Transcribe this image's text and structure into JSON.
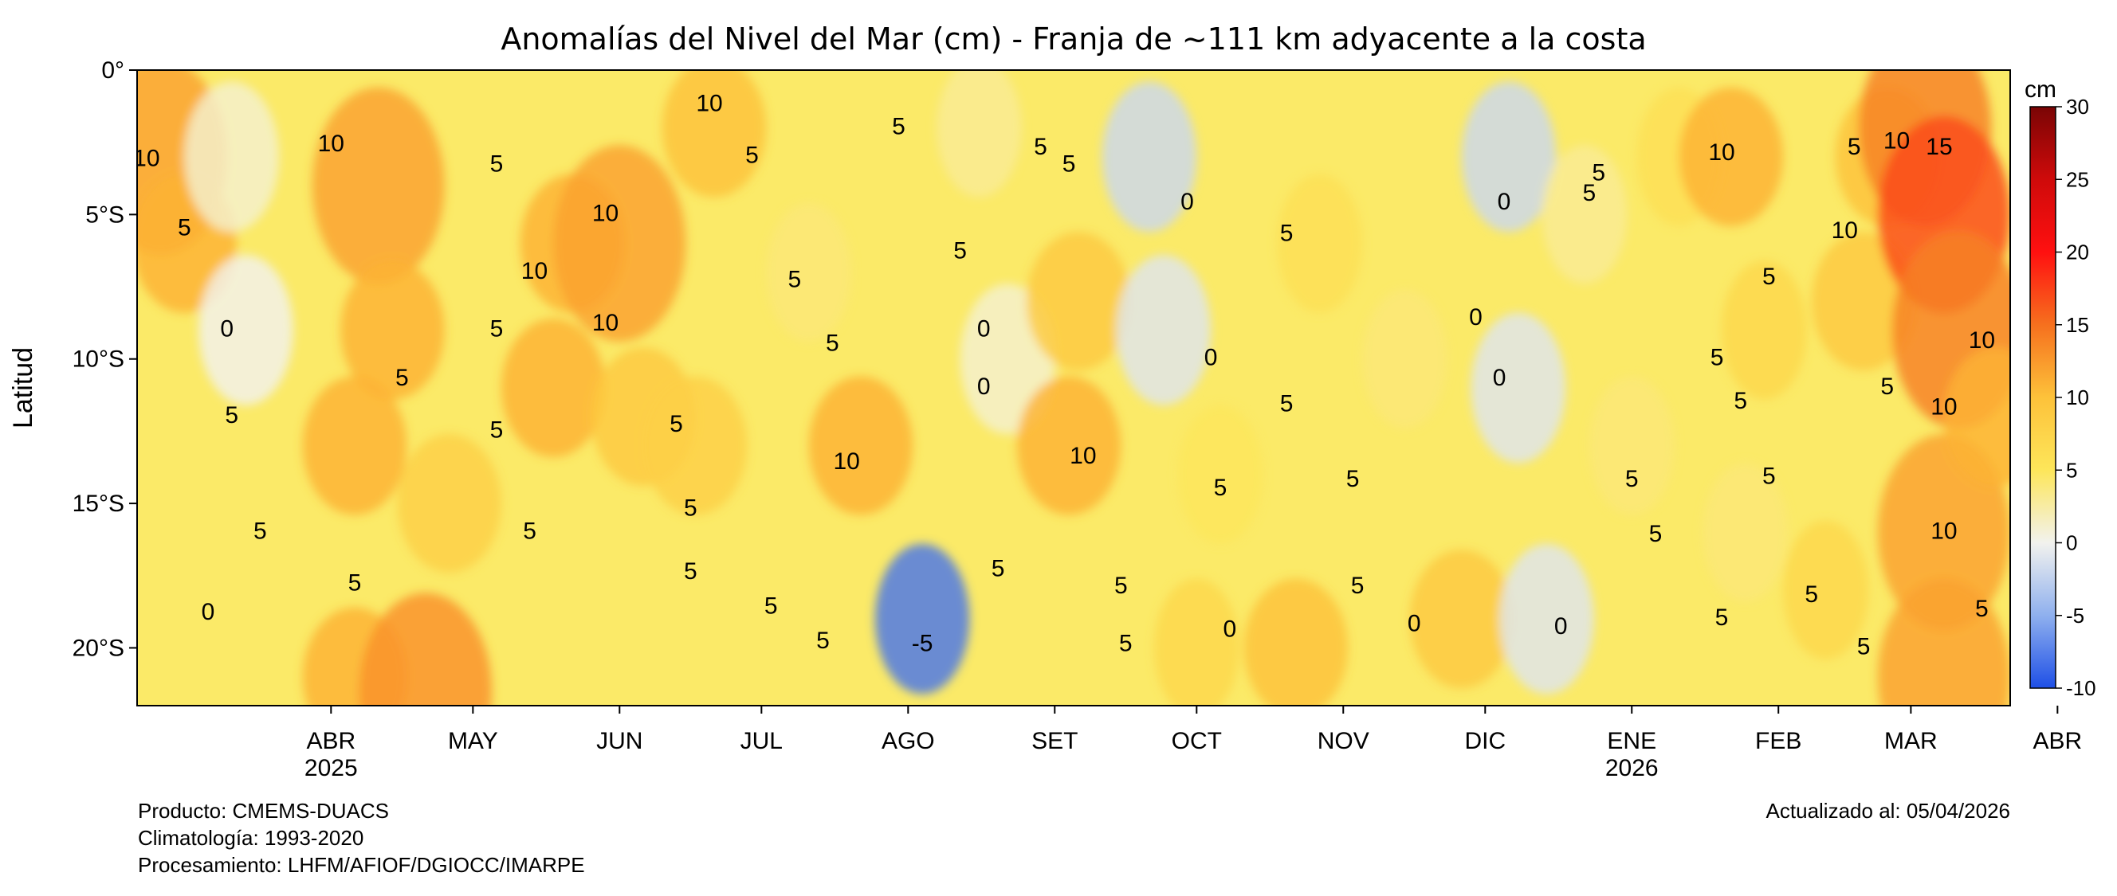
{
  "chart_data": {
    "type": "heatmap",
    "title": "Anomalías del Nivel del Mar (cm) - Franja de ~111 km adyacente a la costa",
    "ylabel": "Latitud",
    "colorbar_label": "cm",
    "colorbar_ticks": [
      30,
      25,
      20,
      15,
      10,
      5,
      0,
      -5,
      -10
    ],
    "colorbar_range": [
      -10,
      30
    ],
    "y_ticks": [
      "0°",
      "5°S",
      "10°S",
      "15°S",
      "20°S"
    ],
    "y_range": [
      0,
      -22
    ],
    "x_ticks": [
      {
        "month": "ABR",
        "year": "2025"
      },
      {
        "month": "MAY",
        "year": ""
      },
      {
        "month": "JUN",
        "year": ""
      },
      {
        "month": "JUL",
        "year": ""
      },
      {
        "month": "AGO",
        "year": ""
      },
      {
        "month": "SET",
        "year": ""
      },
      {
        "month": "OCT",
        "year": ""
      },
      {
        "month": "NOV",
        "year": ""
      },
      {
        "month": "DIC",
        "year": ""
      },
      {
        "month": "ENE",
        "year": "2026"
      },
      {
        "month": "FEB",
        "year": ""
      },
      {
        "month": "MAR",
        "year": ""
      },
      {
        "month": "ABR",
        "year": ""
      }
    ],
    "x_range": [
      "2025-03-05",
      "2026-04-05"
    ],
    "contour_levels": [
      -5,
      0,
      5,
      10,
      15
    ],
    "anomaly_centers": [
      {
        "date": "2025-03-10",
        "lat": -3,
        "value": 12
      },
      {
        "date": "2025-03-15",
        "lat": -6,
        "value": 11
      },
      {
        "date": "2025-03-25",
        "lat": -3,
        "value": 1
      },
      {
        "date": "2025-03-28",
        "lat": -9,
        "value": 0
      },
      {
        "date": "2025-04-25",
        "lat": -4,
        "value": 12
      },
      {
        "date": "2025-04-28",
        "lat": -9,
        "value": 11
      },
      {
        "date": "2025-04-20",
        "lat": -13,
        "value": 11
      },
      {
        "date": "2025-04-20",
        "lat": -21,
        "value": 11
      },
      {
        "date": "2025-05-05",
        "lat": -21.5,
        "value": 13
      },
      {
        "date": "2025-05-10",
        "lat": -15,
        "value": 8
      },
      {
        "date": "2025-06-01",
        "lat": -11,
        "value": 11
      },
      {
        "date": "2025-06-05",
        "lat": -6,
        "value": 11
      },
      {
        "date": "2025-06-15",
        "lat": -6,
        "value": 12
      },
      {
        "date": "2025-06-20",
        "lat": -12,
        "value": 9
      },
      {
        "date": "2025-07-05",
        "lat": -2,
        "value": 10
      },
      {
        "date": "2025-07-01",
        "lat": -13,
        "value": 8
      },
      {
        "date": "2025-07-25",
        "lat": -7,
        "value": 4
      },
      {
        "date": "2025-08-05",
        "lat": -13,
        "value": 11
      },
      {
        "date": "2025-08-18",
        "lat": -19,
        "value": -8
      },
      {
        "date": "2025-08-30",
        "lat": -2,
        "value": 3
      },
      {
        "date": "2025-09-05",
        "lat": -10,
        "value": 1
      },
      {
        "date": "2025-09-18",
        "lat": -13,
        "value": 11
      },
      {
        "date": "2025-09-20",
        "lat": -8,
        "value": 9
      },
      {
        "date": "2025-10-05",
        "lat": -3,
        "value": -2
      },
      {
        "date": "2025-10-08",
        "lat": -9,
        "value": -1
      },
      {
        "date": "2025-10-20",
        "lat": -14,
        "value": 5
      },
      {
        "date": "2025-10-15",
        "lat": -20,
        "value": 7
      },
      {
        "date": "2025-11-05",
        "lat": -20,
        "value": 10
      },
      {
        "date": "2025-11-10",
        "lat": -6,
        "value": 6
      },
      {
        "date": "2025-11-28",
        "lat": -10,
        "value": 4
      },
      {
        "date": "2025-12-10",
        "lat": -19,
        "value": 9
      },
      {
        "date": "2025-12-20",
        "lat": -3,
        "value": -2
      },
      {
        "date": "2025-12-22",
        "lat": -11,
        "value": -1
      },
      {
        "date": "2025-12-28",
        "lat": -19,
        "value": -1
      },
      {
        "date": "2026-01-05",
        "lat": -5,
        "value": 3
      },
      {
        "date": "2026-01-15",
        "lat": -13,
        "value": 4
      },
      {
        "date": "2026-01-25",
        "lat": -3,
        "value": 6
      },
      {
        "date": "2026-02-05",
        "lat": -3,
        "value": 11
      },
      {
        "date": "2026-02-08",
        "lat": -16,
        "value": 4
      },
      {
        "date": "2026-02-12",
        "lat": -9,
        "value": 7
      },
      {
        "date": "2026-02-25",
        "lat": -18,
        "value": 7
      },
      {
        "date": "2026-03-05",
        "lat": -8,
        "value": 9
      },
      {
        "date": "2026-03-10",
        "lat": -3,
        "value": 10
      },
      {
        "date": "2026-03-18",
        "lat": -2,
        "value": 14
      },
      {
        "date": "2026-03-22",
        "lat": -5,
        "value": 17
      },
      {
        "date": "2026-03-25",
        "lat": -9,
        "value": 14
      },
      {
        "date": "2026-03-22",
        "lat": -16,
        "value": 12
      },
      {
        "date": "2026-03-22",
        "lat": -21,
        "value": 12
      },
      {
        "date": "2026-04-02",
        "lat": -12,
        "value": 11
      }
    ],
    "contour_labels": [
      {
        "text": "10",
        "date": "2025-03-07",
        "lat": -3.1
      },
      {
        "text": "5",
        "date": "2025-03-15",
        "lat": -5.5
      },
      {
        "text": "0",
        "date": "2025-03-24",
        "lat": -9.0
      },
      {
        "text": "5",
        "date": "2025-03-25",
        "lat": -12.0
      },
      {
        "text": "0",
        "date": "2025-03-20",
        "lat": -18.8
      },
      {
        "text": "5",
        "date": "2025-03-31",
        "lat": -16.0
      },
      {
        "text": "10",
        "date": "2025-04-15",
        "lat": -2.6
      },
      {
        "text": "5",
        "date": "2025-04-20",
        "lat": -17.8
      },
      {
        "text": "5",
        "date": "2025-04-30",
        "lat": -10.7
      },
      {
        "text": "5",
        "date": "2025-05-20",
        "lat": -3.3
      },
      {
        "text": "5",
        "date": "2025-05-20",
        "lat": -9.0
      },
      {
        "text": "5",
        "date": "2025-05-20",
        "lat": -12.5
      },
      {
        "text": "5",
        "date": "2025-05-27",
        "lat": -16.0
      },
      {
        "text": "10",
        "date": "2025-05-28",
        "lat": -7.0
      },
      {
        "text": "10",
        "date": "2025-06-12",
        "lat": -5.0
      },
      {
        "text": "10",
        "date": "2025-06-12",
        "lat": -8.8
      },
      {
        "text": "10",
        "date": "2025-07-04",
        "lat": -1.2
      },
      {
        "text": "5",
        "date": "2025-06-27",
        "lat": -12.3
      },
      {
        "text": "5",
        "date": "2025-06-30",
        "lat": -15.2
      },
      {
        "text": "5",
        "date": "2025-06-30",
        "lat": -17.4
      },
      {
        "text": "5",
        "date": "2025-07-13",
        "lat": -3.0
      },
      {
        "text": "5",
        "date": "2025-07-22",
        "lat": -7.3
      },
      {
        "text": "5",
        "date": "2025-07-30",
        "lat": -9.5
      },
      {
        "text": "10",
        "date": "2025-08-02",
        "lat": -13.6
      },
      {
        "text": "5",
        "date": "2025-07-17",
        "lat": -18.6
      },
      {
        "text": "5",
        "date": "2025-07-28",
        "lat": -19.8
      },
      {
        "text": "5",
        "date": "2025-08-13",
        "lat": -2.0
      },
      {
        "text": "5",
        "date": "2025-08-26",
        "lat": -6.3
      },
      {
        "text": "-5",
        "date": "2025-08-18",
        "lat": -19.9
      },
      {
        "text": "0",
        "date": "2025-08-31",
        "lat": -9.0
      },
      {
        "text": "0",
        "date": "2025-08-31",
        "lat": -11.0
      },
      {
        "text": "5",
        "date": "2025-09-03",
        "lat": -17.3
      },
      {
        "text": "5",
        "date": "2025-09-12",
        "lat": -2.7
      },
      {
        "text": "5",
        "date": "2025-09-18",
        "lat": -3.3
      },
      {
        "text": "10",
        "date": "2025-09-21",
        "lat": -13.4
      },
      {
        "text": "5",
        "date": "2025-09-29",
        "lat": -17.9
      },
      {
        "text": "5",
        "date": "2025-09-30",
        "lat": -19.9
      },
      {
        "text": "0",
        "date": "2025-10-13",
        "lat": -4.6
      },
      {
        "text": "0",
        "date": "2025-10-18",
        "lat": -10.0
      },
      {
        "text": "5",
        "date": "2025-10-20",
        "lat": -14.5
      },
      {
        "text": "0",
        "date": "2025-10-22",
        "lat": -19.4
      },
      {
        "text": "5",
        "date": "2025-11-03",
        "lat": -5.7
      },
      {
        "text": "5",
        "date": "2025-11-03",
        "lat": -11.6
      },
      {
        "text": "5",
        "date": "2025-11-17",
        "lat": -14.2
      },
      {
        "text": "5",
        "date": "2025-11-18",
        "lat": -17.9
      },
      {
        "text": "0",
        "date": "2025-11-30",
        "lat": -19.2
      },
      {
        "text": "0",
        "date": "2025-12-13",
        "lat": -8.6
      },
      {
        "text": "0",
        "date": "2025-12-19",
        "lat": -4.6
      },
      {
        "text": "0",
        "date": "2025-12-18",
        "lat": -10.7
      },
      {
        "text": "0",
        "date": "2025-12-31",
        "lat": -19.3
      },
      {
        "text": "5",
        "date": "2026-01-06",
        "lat": -4.3
      },
      {
        "text": "5",
        "date": "2026-01-08",
        "lat": -3.6
      },
      {
        "text": "5",
        "date": "2026-01-15",
        "lat": -14.2
      },
      {
        "text": "5",
        "date": "2026-01-20",
        "lat": -16.1
      },
      {
        "text": "10",
        "date": "2026-02-03",
        "lat": -2.9
      },
      {
        "text": "5",
        "date": "2026-02-02",
        "lat": -10.0
      },
      {
        "text": "5",
        "date": "2026-02-07",
        "lat": -11.5
      },
      {
        "text": "5",
        "date": "2026-02-03",
        "lat": -19.0
      },
      {
        "text": "5",
        "date": "2026-02-13",
        "lat": -14.1
      },
      {
        "text": "5",
        "date": "2026-02-13",
        "lat": -7.2
      },
      {
        "text": "5",
        "date": "2026-02-22",
        "lat": -18.2
      },
      {
        "text": "5",
        "date": "2026-03-03",
        "lat": -2.7
      },
      {
        "text": "10",
        "date": "2026-03-01",
        "lat": -5.6
      },
      {
        "text": "10",
        "date": "2026-03-12",
        "lat": -2.5
      },
      {
        "text": "5",
        "date": "2026-03-10",
        "lat": -11.0
      },
      {
        "text": "5",
        "date": "2026-03-05",
        "lat": -20.0
      },
      {
        "text": "15",
        "date": "2026-03-21",
        "lat": -2.7
      },
      {
        "text": "10",
        "date": "2026-03-22",
        "lat": -16.0
      },
      {
        "text": "10",
        "date": "2026-03-22",
        "lat": -11.7
      },
      {
        "text": "10",
        "date": "2026-03-30",
        "lat": -9.4
      },
      {
        "text": "5",
        "date": "2026-03-30",
        "lat": -18.7
      }
    ]
  },
  "footer": {
    "product": "Producto: CMEMS-DUACS",
    "climatology": "Climatología: 1993-2020",
    "processing": "Procesamiento: LHFM/AFIOF/DGIOCC/IMARPE",
    "updated": "Actualizado al: 05/04/2026"
  }
}
